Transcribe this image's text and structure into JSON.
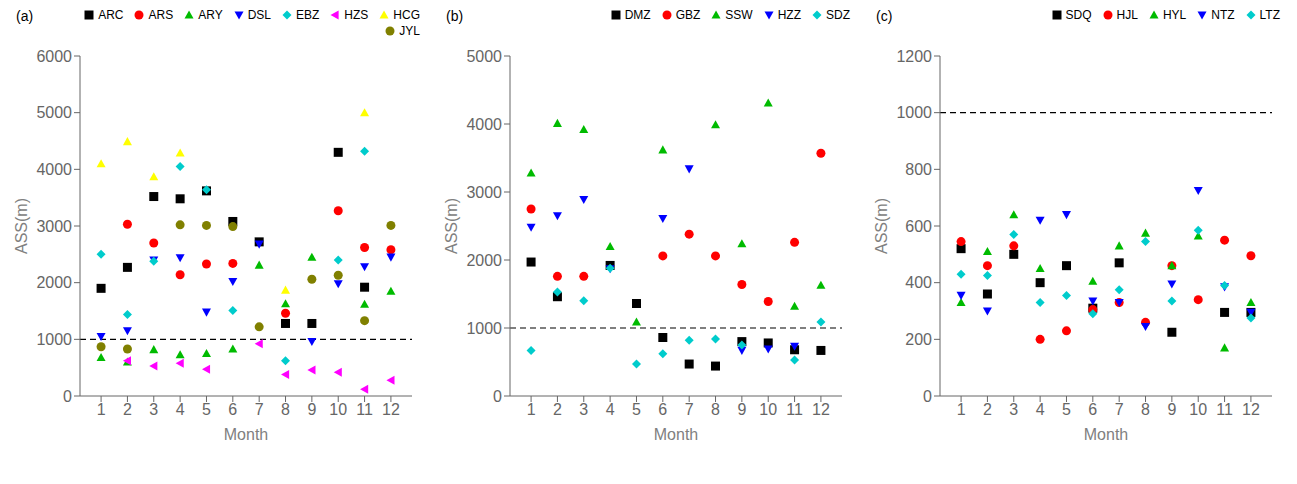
{
  "chart_data": [
    {
      "type": "scatter",
      "title": "(a)",
      "xlabel": "Month",
      "ylabel": "ASS(m)",
      "x": [
        1,
        2,
        3,
        4,
        5,
        6,
        7,
        8,
        9,
        10,
        11,
        12
      ],
      "xlim": [
        0.2,
        12.8
      ],
      "xticks": [
        1,
        2,
        3,
        4,
        5,
        6,
        7,
        8,
        9,
        10,
        11,
        12
      ],
      "ylim": [
        0,
        6000
      ],
      "yticks": [
        0,
        1000,
        2000,
        3000,
        4000,
        5000,
        6000
      ],
      "grid": false,
      "legend": "upper right",
      "hline": {
        "y": 1000,
        "line_style": "dashed",
        "color": "#000000"
      },
      "series": [
        {
          "name": "ARC",
          "color": "#000000",
          "marker": "square",
          "values": [
            1900,
            2270,
            3520,
            3480,
            3620,
            3080,
            2720,
            1280,
            1280,
            4300,
            1920,
            null
          ]
        },
        {
          "name": "ARS",
          "color": "#ff0000",
          "marker": "circle",
          "values": [
            null,
            3030,
            2700,
            2140,
            2330,
            2340,
            null,
            1460,
            null,
            3270,
            2620,
            2580
          ]
        },
        {
          "name": "ARY",
          "color": "#00bb00",
          "marker": "triangle-up",
          "values": [
            680,
            600,
            820,
            730,
            750,
            830,
            2310,
            1630,
            2450,
            null,
            1620,
            1850
          ]
        },
        {
          "name": "DSL",
          "color": "#0000ff",
          "marker": "triangle-down",
          "values": [
            1050,
            1150,
            2400,
            2440,
            1480,
            2020,
            2680,
            null,
            960,
            1980,
            2280,
            2450
          ]
        },
        {
          "name": "EBZ",
          "color": "#00cccc",
          "marker": "diamond",
          "values": [
            2500,
            1440,
            2380,
            4050,
            3640,
            1510,
            null,
            620,
            null,
            2400,
            4320,
            null
          ]
        },
        {
          "name": "HZS",
          "color": "#ff00ff",
          "marker": "triangle-left",
          "values": [
            null,
            620,
            530,
            580,
            470,
            null,
            920,
            380,
            460,
            420,
            120,
            280
          ]
        },
        {
          "name": "HCG",
          "color": "#ffff00",
          "marker": "triangle-up",
          "values": [
            4100,
            4490,
            3870,
            4290,
            null,
            null,
            null,
            1870,
            null,
            null,
            5000,
            null
          ]
        },
        {
          "name": "JYL",
          "color": "#808000",
          "marker": "circle",
          "values": [
            870,
            830,
            null,
            3020,
            3010,
            2990,
            1220,
            null,
            2060,
            2130,
            1330,
            3010
          ]
        }
      ]
    },
    {
      "type": "scatter",
      "title": "(b)",
      "xlabel": "Month",
      "ylabel": "ASS(m)",
      "x": [
        1,
        2,
        3,
        4,
        5,
        6,
        7,
        8,
        9,
        10,
        11,
        12
      ],
      "xlim": [
        0.2,
        12.8
      ],
      "xticks": [
        1,
        2,
        3,
        4,
        5,
        6,
        7,
        8,
        9,
        10,
        11,
        12
      ],
      "ylim": [
        0,
        5000
      ],
      "yticks": [
        0,
        1000,
        2000,
        3000,
        4000,
        5000
      ],
      "grid": false,
      "legend": "upper right",
      "hline": {
        "y": 1000,
        "line_style": "dashed",
        "color": "#000000"
      },
      "series": [
        {
          "name": "DMZ",
          "color": "#000000",
          "marker": "square",
          "values": [
            1970,
            1460,
            null,
            1920,
            1360,
            860,
            470,
            440,
            800,
            780,
            680,
            670
          ]
        },
        {
          "name": "GBZ",
          "color": "#ff0000",
          "marker": "circle",
          "values": [
            2750,
            1760,
            1760,
            null,
            null,
            2060,
            2380,
            2060,
            1640,
            1390,
            2260,
            3570
          ]
        },
        {
          "name": "SSW",
          "color": "#00bb00",
          "marker": "triangle-up",
          "values": [
            3280,
            4010,
            3920,
            2200,
            1090,
            3620,
            null,
            3990,
            2240,
            4310,
            1320,
            1630
          ]
        },
        {
          "name": "HZZ",
          "color": "#0000ff",
          "marker": "triangle-down",
          "values": [
            2480,
            2650,
            2890,
            1870,
            null,
            2610,
            3340,
            null,
            670,
            690,
            730,
            null
          ]
        },
        {
          "name": "SDZ",
          "color": "#00cccc",
          "marker": "diamond",
          "values": [
            670,
            1530,
            1400,
            1880,
            470,
            620,
            820,
            840,
            750,
            null,
            530,
            1090
          ]
        }
      ]
    },
    {
      "type": "scatter",
      "title": "(c)",
      "xlabel": "Month",
      "ylabel": "ASS(m)",
      "x": [
        1,
        2,
        3,
        4,
        5,
        6,
        7,
        8,
        9,
        10,
        11,
        12
      ],
      "xlim": [
        0.2,
        12.8
      ],
      "xticks": [
        1,
        2,
        3,
        4,
        5,
        6,
        7,
        8,
        9,
        10,
        11,
        12
      ],
      "ylim": [
        0,
        1200
      ],
      "yticks": [
        0,
        200,
        400,
        600,
        800,
        1000,
        1200
      ],
      "grid": false,
      "legend": "upper right",
      "hline": {
        "y": 1000,
        "line_style": "dashed",
        "color": "#000000"
      },
      "series": [
        {
          "name": "SDQ",
          "color": "#000000",
          "marker": "square",
          "values": [
            520,
            360,
            500,
            400,
            460,
            310,
            470,
            null,
            225,
            null,
            295,
            295
          ]
        },
        {
          "name": "HJL",
          "color": "#ff0000",
          "marker": "circle",
          "values": [
            545,
            460,
            530,
            200,
            230,
            305,
            330,
            260,
            460,
            340,
            550,
            495
          ]
        },
        {
          "name": "HYL",
          "color": "#00bb00",
          "marker": "triangle-up",
          "values": [
            330,
            510,
            640,
            450,
            null,
            405,
            530,
            575,
            460,
            565,
            170,
            330
          ]
        },
        {
          "name": "NTZ",
          "color": "#0000ff",
          "marker": "triangle-down",
          "values": [
            355,
            300,
            null,
            620,
            640,
            335,
            330,
            245,
            395,
            725,
            385,
            295
          ]
        },
        {
          "name": "LTZ",
          "color": "#00cccc",
          "marker": "diamond",
          "values": [
            430,
            425,
            570,
            330,
            355,
            290,
            375,
            545,
            335,
            585,
            390,
            275
          ]
        }
      ]
    }
  ]
}
